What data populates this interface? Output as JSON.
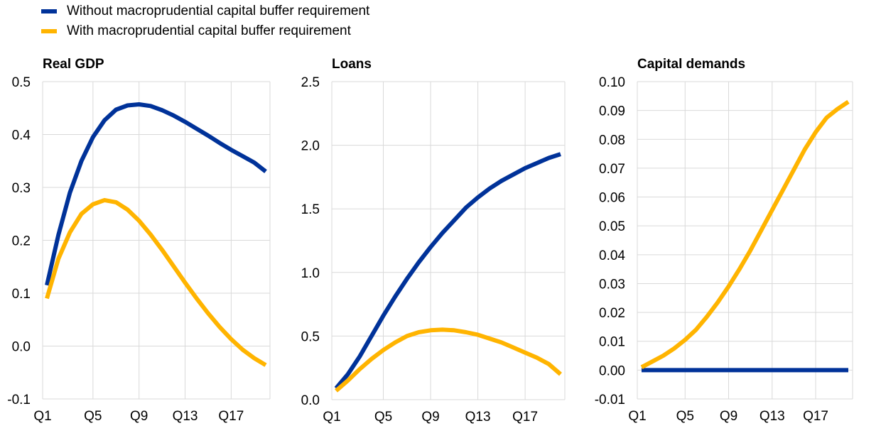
{
  "legend": [
    {
      "label": "Without macroprudential capital buffer requirement",
      "color": "#003299"
    },
    {
      "label": "With macroprudential capital buffer requirement",
      "color": "#FFB400"
    }
  ],
  "chart_data": [
    {
      "type": "line",
      "title": "Real GDP",
      "x": [
        "Q1",
        "Q2",
        "Q3",
        "Q4",
        "Q5",
        "Q6",
        "Q7",
        "Q8",
        "Q9",
        "Q10",
        "Q11",
        "Q12",
        "Q13",
        "Q14",
        "Q15",
        "Q16",
        "Q17",
        "Q18",
        "Q19",
        "Q20"
      ],
      "xticks": [
        "Q1",
        "Q5",
        "Q9",
        "Q13",
        "Q17"
      ],
      "ylim": [
        -0.1,
        0.5
      ],
      "yticks": [
        "-0.1",
        "0.0",
        "0.1",
        "0.2",
        "0.3",
        "0.4",
        "0.5"
      ],
      "grid": true,
      "series": [
        {
          "name": "Without macroprudential capital buffer requirement",
          "color": "#003299",
          "values": [
            0.115,
            0.21,
            0.29,
            0.35,
            0.395,
            0.427,
            0.447,
            0.455,
            0.457,
            0.454,
            0.446,
            0.436,
            0.424,
            0.411,
            0.398,
            0.384,
            0.371,
            0.359,
            0.347,
            0.33
          ]
        },
        {
          "name": "With macroprudential capital buffer requirement",
          "color": "#FFB400",
          "values": [
            0.09,
            0.165,
            0.215,
            0.25,
            0.268,
            0.276,
            0.272,
            0.258,
            0.237,
            0.211,
            0.182,
            0.151,
            0.12,
            0.09,
            0.062,
            0.036,
            0.013,
            -0.007,
            -0.023,
            -0.036
          ]
        }
      ]
    },
    {
      "type": "line",
      "title": "Loans",
      "x": [
        "Q1",
        "Q2",
        "Q3",
        "Q4",
        "Q5",
        "Q6",
        "Q7",
        "Q8",
        "Q9",
        "Q10",
        "Q11",
        "Q12",
        "Q13",
        "Q14",
        "Q15",
        "Q16",
        "Q17",
        "Q18",
        "Q19",
        "Q20"
      ],
      "xticks": [
        "Q1",
        "Q5",
        "Q9",
        "Q13",
        "Q17"
      ],
      "ylim": [
        0.0,
        2.5
      ],
      "yticks": [
        "0.0",
        "0.5",
        "1.0",
        "1.5",
        "2.0",
        "2.5"
      ],
      "grid": true,
      "series": [
        {
          "name": "Without macroprudential capital buffer requirement",
          "color": "#003299",
          "values": [
            0.09,
            0.2,
            0.34,
            0.5,
            0.66,
            0.81,
            0.95,
            1.08,
            1.2,
            1.31,
            1.41,
            1.51,
            1.59,
            1.66,
            1.72,
            1.77,
            1.82,
            1.86,
            1.9,
            1.93
          ]
        },
        {
          "name": "With macroprudential capital buffer requirement",
          "color": "#FFB400",
          "values": [
            0.07,
            0.15,
            0.24,
            0.32,
            0.39,
            0.45,
            0.5,
            0.53,
            0.545,
            0.55,
            0.545,
            0.53,
            0.51,
            0.48,
            0.45,
            0.41,
            0.37,
            0.33,
            0.28,
            0.2
          ]
        }
      ]
    },
    {
      "type": "line",
      "title": "Capital demands",
      "x": [
        "Q1",
        "Q2",
        "Q3",
        "Q4",
        "Q5",
        "Q6",
        "Q7",
        "Q8",
        "Q9",
        "Q10",
        "Q11",
        "Q12",
        "Q13",
        "Q14",
        "Q15",
        "Q16",
        "Q17",
        "Q18",
        "Q19",
        "Q20"
      ],
      "xticks": [
        "Q1",
        "Q5",
        "Q9",
        "Q13",
        "Q17"
      ],
      "ylim": [
        -0.01,
        0.1
      ],
      "yticks": [
        "-0.01",
        "0.00",
        "0.01",
        "0.02",
        "0.03",
        "0.04",
        "0.05",
        "0.06",
        "0.07",
        "0.08",
        "0.09",
        "0.10"
      ],
      "grid": true,
      "series": [
        {
          "name": "Without macroprudential capital buffer requirement",
          "color": "#003299",
          "values": [
            0,
            0,
            0,
            0,
            0,
            0,
            0,
            0,
            0,
            0,
            0,
            0,
            0,
            0,
            0,
            0,
            0,
            0,
            0,
            0
          ]
        },
        {
          "name": "With macroprudential capital buffer requirement",
          "color": "#FFB400",
          "values": [
            0.001,
            0.003,
            0.005,
            0.0075,
            0.0105,
            0.014,
            0.0185,
            0.0235,
            0.029,
            0.035,
            0.0415,
            0.0485,
            0.0555,
            0.0625,
            0.0695,
            0.0765,
            0.0825,
            0.0875,
            0.0905,
            0.093
          ]
        }
      ]
    }
  ]
}
